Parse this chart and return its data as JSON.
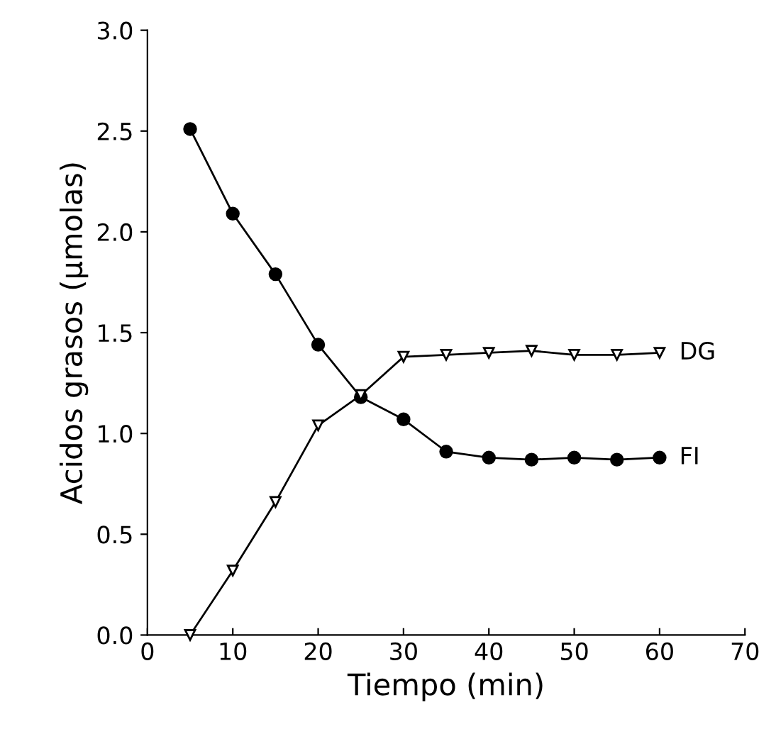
{
  "chart_data": {
    "type": "line",
    "xlabel": "Tiempo (min)",
    "ylabel": "Acidos grasos (μmolas)",
    "x": [
      5,
      10,
      15,
      20,
      25,
      30,
      35,
      40,
      45,
      50,
      55,
      60
    ],
    "series": [
      {
        "name": "DG",
        "color": "#000000",
        "marker": "triangle",
        "values": [
          0.0,
          0.32,
          0.66,
          1.04,
          1.19,
          1.38,
          1.39,
          1.4,
          1.41,
          1.39,
          1.39,
          1.4
        ]
      },
      {
        "name": "FI",
        "color": "#000000",
        "marker": "circle",
        "values": [
          2.51,
          2.09,
          1.79,
          1.44,
          1.18,
          1.07,
          0.91,
          0.88,
          0.87,
          0.88,
          0.87,
          0.88
        ]
      }
    ],
    "xlim": [
      0,
      70
    ],
    "xticks": [
      0,
      10,
      20,
      30,
      40,
      50,
      60,
      70
    ],
    "ylim": [
      0,
      3.0
    ],
    "yticks": [
      {
        "value": 0,
        "label": "0.0"
      },
      {
        "value": 0.5,
        "label": "0.5"
      },
      {
        "value": 1.0,
        "label": "1.0"
      },
      {
        "value": 1.5,
        "label": "1.5"
      },
      {
        "value": 2.0,
        "label": "2.0"
      },
      {
        "value": 2.5,
        "label": "2.5"
      },
      {
        "value": 3.0,
        "label": "3.0"
      }
    ],
    "grid": false,
    "legend": false,
    "line_style": "solid"
  }
}
